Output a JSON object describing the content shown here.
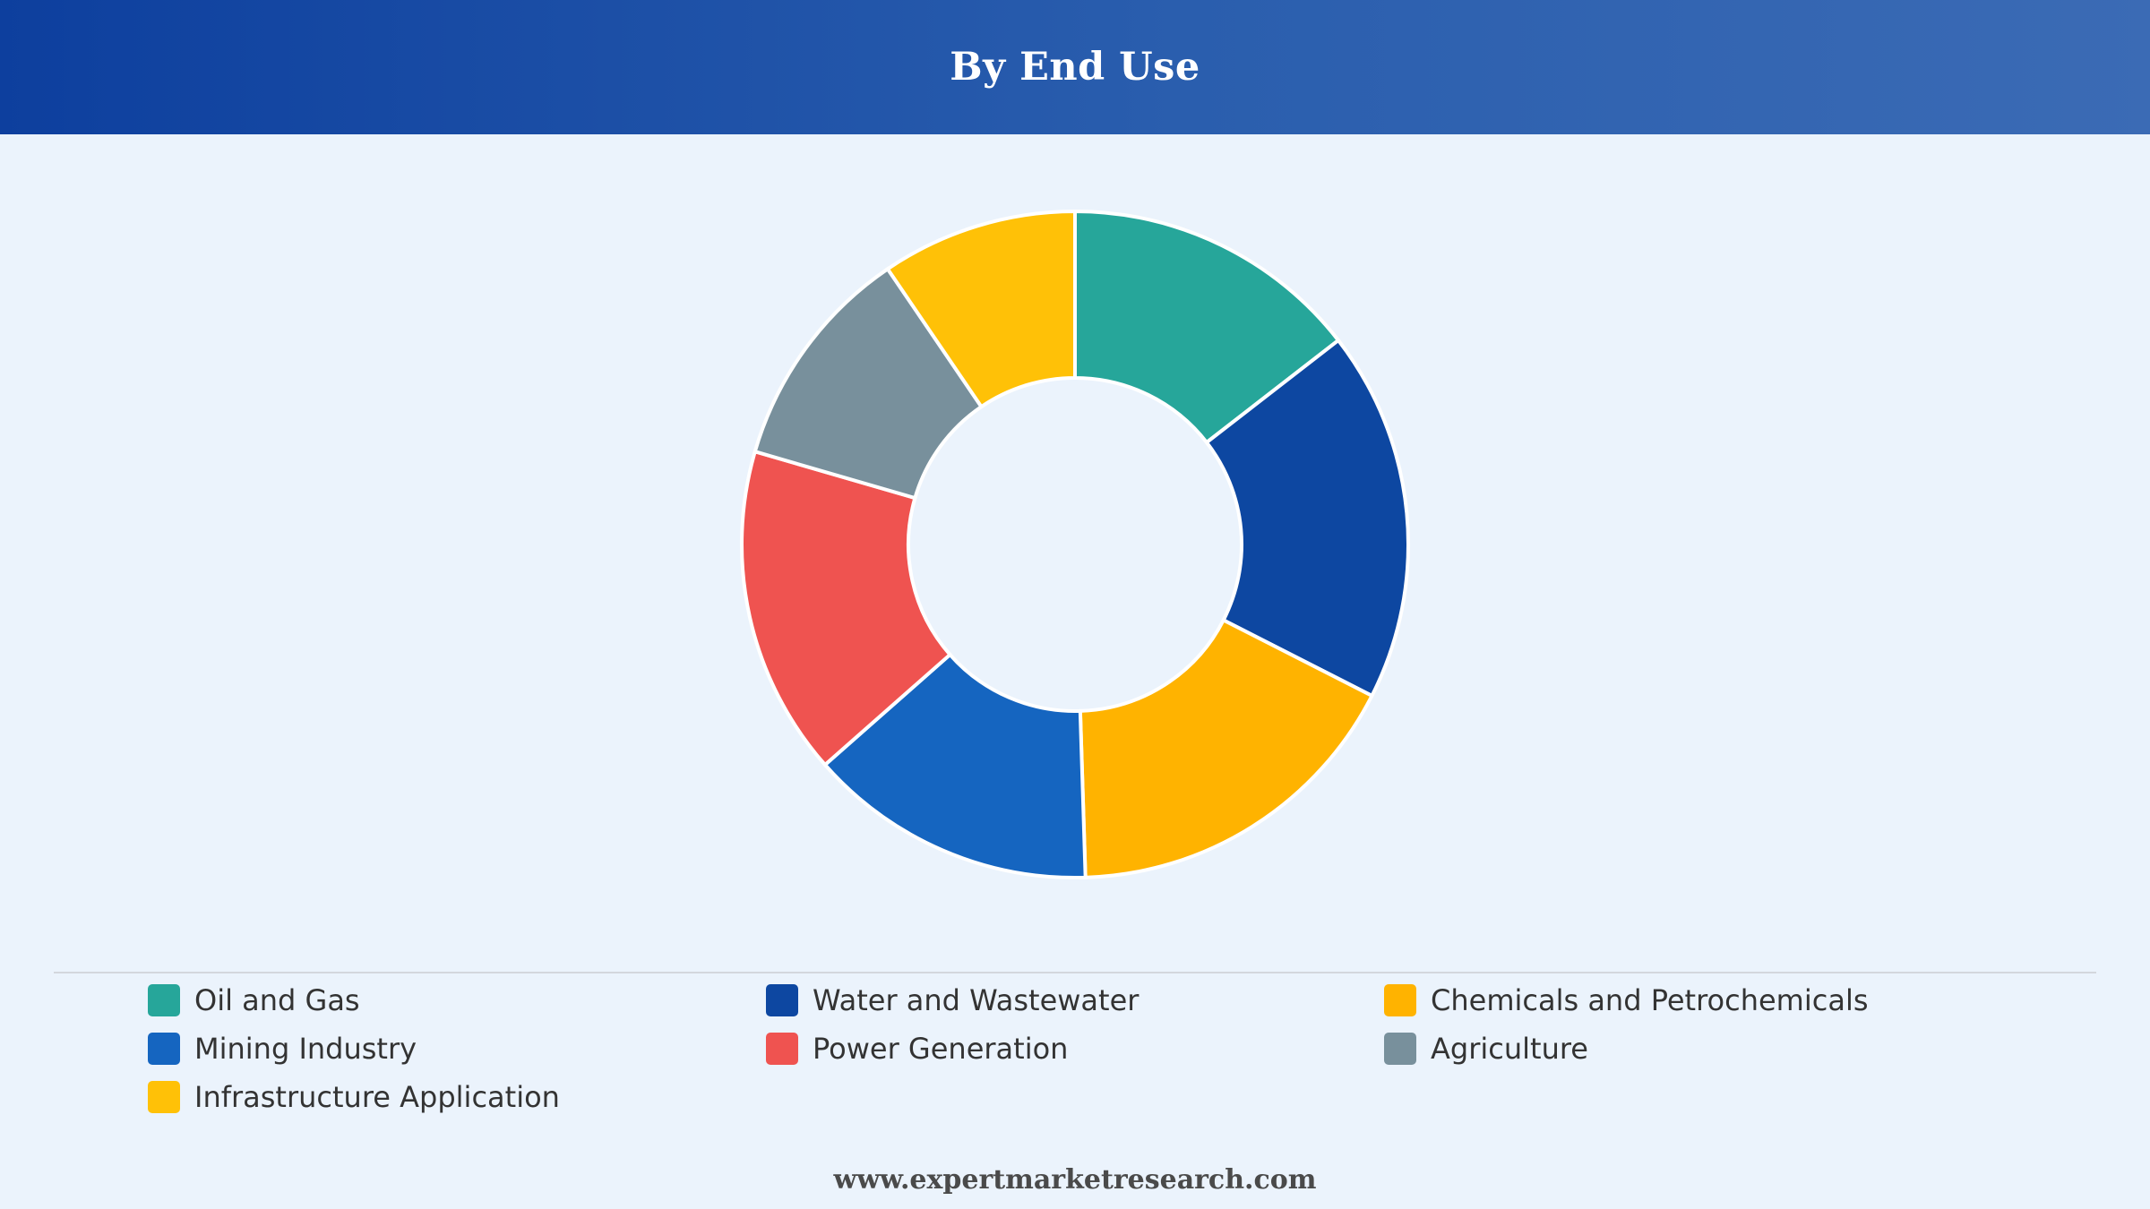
{
  "header": {
    "title": "By End Use"
  },
  "chart_data": {
    "type": "pie",
    "donut": true,
    "title": "By End Use",
    "legend_position": "bottom",
    "slices": [
      {
        "label": "Oil and Gas",
        "value": 14.5,
        "color": "#26a69a"
      },
      {
        "label": "Water and Wastewater",
        "value": 18.0,
        "color": "#0d47a1"
      },
      {
        "label": "Chemicals and Petrochemicals",
        "value": 17.0,
        "color": "#ffb300"
      },
      {
        "label": "Mining Industry",
        "value": 14.0,
        "color": "#1565c0"
      },
      {
        "label": "Power Generation",
        "value": 16.0,
        "color": "#ef5350"
      },
      {
        "label": "Agriculture",
        "value": 11.0,
        "color": "#78909c"
      },
      {
        "label": "Infrastructure Application",
        "value": 9.5,
        "color": "#ffc107"
      }
    ]
  },
  "footer": {
    "website": "www.expertmarketresearch.com"
  }
}
